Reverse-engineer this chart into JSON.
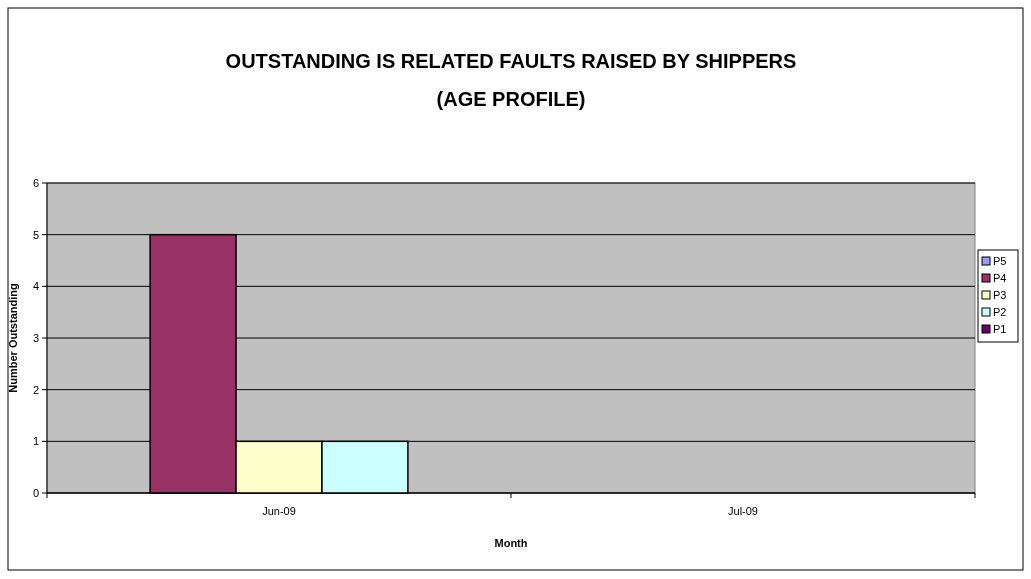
{
  "chart_data": {
    "type": "bar",
    "title": "OUTSTANDING IS RELATED FAULTS RAISED BY SHIPPERS (AGE PROFILE)",
    "xlabel": "Month",
    "ylabel": "Number Outstanding",
    "categories": [
      "Jun-09",
      "Jul-09"
    ],
    "series": [
      {
        "name": "P5",
        "color": "#9999ff",
        "values": [
          0,
          0
        ]
      },
      {
        "name": "P4",
        "color": "#993366",
        "values": [
          5,
          0
        ]
      },
      {
        "name": "P3",
        "color": "#ffffcc",
        "values": [
          1,
          0
        ]
      },
      {
        "name": "P2",
        "color": "#ccffff",
        "values": [
          1,
          0
        ]
      },
      {
        "name": "P1",
        "color": "#660066",
        "values": [
          0,
          0
        ]
      }
    ],
    "ylim": [
      0,
      6
    ],
    "yticks": [
      0,
      1,
      2,
      3,
      4,
      5,
      6
    ],
    "grid": "y",
    "legend": "right"
  }
}
